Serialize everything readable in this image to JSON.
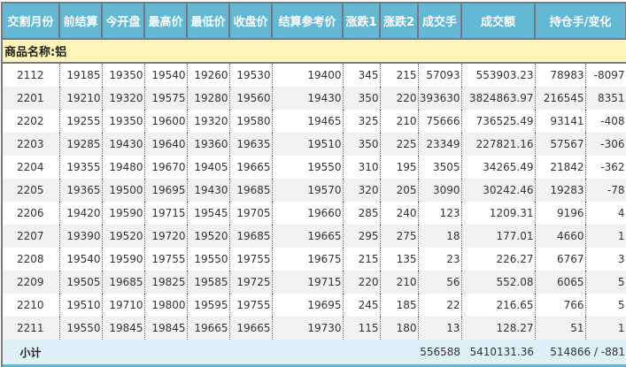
{
  "headers": [
    "交割月份",
    "前结算",
    "今开盘",
    "最高价",
    "最低价",
    "收盘价",
    "结算参考价",
    "涨跌1",
    "涨跌2",
    "成交手",
    "成交额",
    "持仓手/变化"
  ],
  "category": "商品名称:铝",
  "rows": [
    [
      "2112",
      "19185",
      "19350",
      "19540",
      "19260",
      "19530",
      "19400",
      "345",
      "215",
      "57093",
      "553903.23",
      "78983",
      "-8097"
    ],
    [
      "2201",
      "19210",
      "19320",
      "19575",
      "19280",
      "19560",
      "19430",
      "350",
      "220",
      "393630",
      "3824863.97",
      "216545",
      "8351"
    ],
    [
      "2202",
      "19255",
      "19350",
      "19600",
      "19320",
      "19580",
      "19465",
      "325",
      "210",
      "75666",
      "736525.49",
      "93141",
      "-408"
    ],
    [
      "2203",
      "19285",
      "19430",
      "19640",
      "19360",
      "19635",
      "19510",
      "350",
      "225",
      "23349",
      "227821.16",
      "57567",
      "-306"
    ],
    [
      "2204",
      "19355",
      "19480",
      "19670",
      "19405",
      "19665",
      "19550",
      "310",
      "195",
      "3505",
      "34265.49",
      "21842",
      "-362"
    ],
    [
      "2205",
      "19365",
      "19500",
      "19695",
      "19430",
      "19685",
      "19570",
      "320",
      "205",
      "3090",
      "30242.46",
      "19283",
      "-78"
    ],
    [
      "2206",
      "19420",
      "19590",
      "19715",
      "19545",
      "19705",
      "19660",
      "285",
      "240",
      "123",
      "1209.31",
      "9196",
      "4"
    ],
    [
      "2207",
      "19390",
      "19520",
      "19720",
      "19520",
      "19685",
      "19665",
      "295",
      "275",
      "18",
      "177.01",
      "4660",
      "1"
    ],
    [
      "2208",
      "19540",
      "19590",
      "19755",
      "19550",
      "19755",
      "19675",
      "215",
      "135",
      "23",
      "226.27",
      "6767",
      "3"
    ],
    [
      "2209",
      "19505",
      "19685",
      "19825",
      "19585",
      "19725",
      "19715",
      "220",
      "210",
      "56",
      "552.08",
      "6065",
      "5"
    ],
    [
      "2210",
      "19510",
      "19710",
      "19800",
      "19595",
      "19755",
      "19695",
      "245",
      "185",
      "22",
      "216.65",
      "766",
      "5"
    ],
    [
      "2211",
      "19550",
      "19845",
      "19845",
      "19665",
      "19665",
      "19730",
      "115",
      "180",
      "13",
      "128.27",
      "51",
      "1"
    ]
  ],
  "subtotal": {
    "label": "小计",
    "volume": "556588",
    "turnover": "5410131.36",
    "open_interest": "514866 / -881"
  },
  "colors": {
    "header": "#62b8d5",
    "category_bg": "#fff4b8",
    "subtotal_bg": "#dff0f7",
    "stripe": "#f2f2f2"
  }
}
